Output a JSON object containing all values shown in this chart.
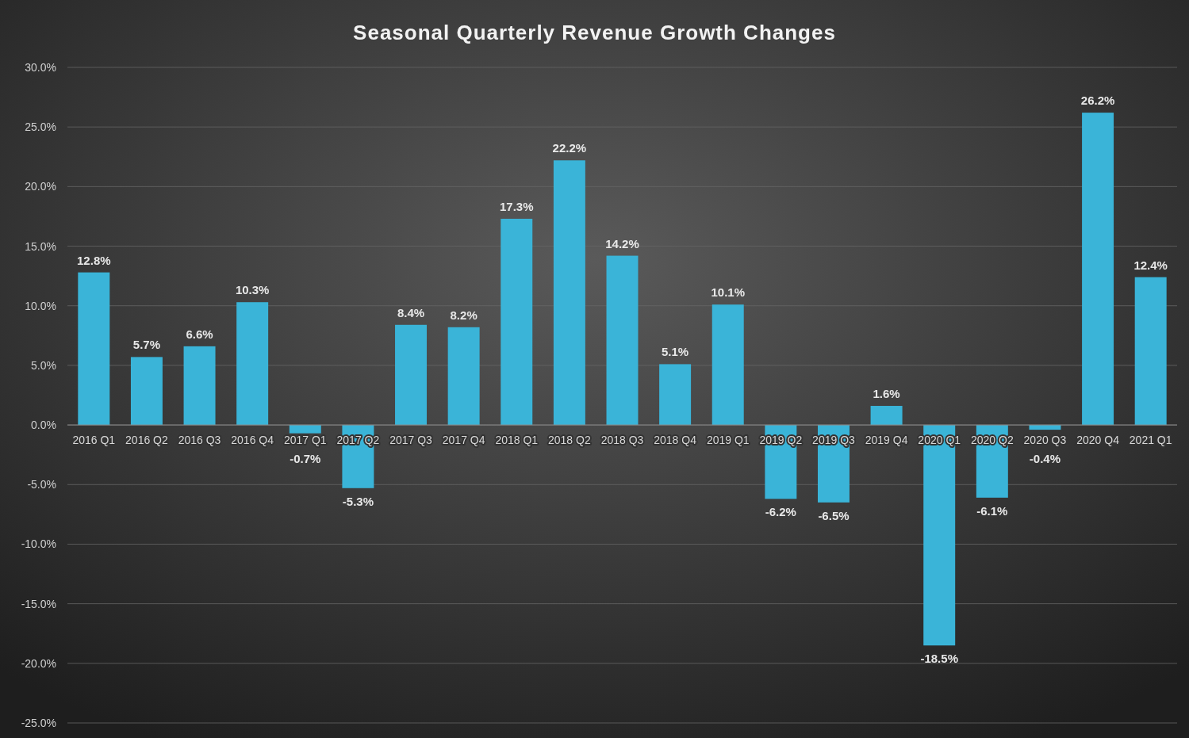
{
  "chart_data": {
    "type": "bar",
    "title": "Seasonal Quarterly Revenue Growth Changes",
    "categories": [
      "2016 Q1",
      "2016 Q2",
      "2016 Q3",
      "2016 Q4",
      "2017 Q1",
      "2017 Q2",
      "2017 Q3",
      "2017 Q4",
      "2018 Q1",
      "2018 Q2",
      "2018 Q3",
      "2018 Q4",
      "2019 Q1",
      "2019 Q2",
      "2019 Q3",
      "2019 Q4",
      "2020 Q1",
      "2020 Q2",
      "2020 Q3",
      "2020 Q4",
      "2021 Q1"
    ],
    "values": [
      12.8,
      5.7,
      6.6,
      10.3,
      -0.7,
      -5.3,
      8.4,
      8.2,
      17.3,
      22.2,
      14.2,
      5.1,
      10.1,
      -6.2,
      -6.5,
      1.6,
      -18.5,
      -6.1,
      -0.4,
      26.2,
      12.4
    ],
    "value_labels": [
      "12.8%",
      "5.7%",
      "6.6%",
      "10.3%",
      "-0.7%",
      "-5.3%",
      "8.4%",
      "8.2%",
      "17.3%",
      "22.2%",
      "14.2%",
      "5.1%",
      "10.1%",
      "-6.2%",
      "-6.5%",
      "1.6%",
      "-18.5%",
      "-6.1%",
      "-0.4%",
      "26.2%",
      "12.4%"
    ],
    "color": "#3ab4d8",
    "ylim": [
      -25,
      30
    ],
    "yticks": [
      {
        "value": -25,
        "label": "-25.0%"
      },
      {
        "value": -20,
        "label": "-20.0%"
      },
      {
        "value": -15,
        "label": "-15.0%"
      },
      {
        "value": -10,
        "label": "-10.0%"
      },
      {
        "value": -5,
        "label": "-5.0%"
      },
      {
        "value": 0,
        "label": "0.0%"
      },
      {
        "value": 5,
        "label": "5.0%"
      },
      {
        "value": 10,
        "label": "10.0%"
      },
      {
        "value": 15,
        "label": "15.0%"
      },
      {
        "value": 20,
        "label": "20.0%"
      },
      {
        "value": 25,
        "label": "25.0%"
      },
      {
        "value": 30,
        "label": "30.0%"
      }
    ],
    "grid": "y"
  }
}
